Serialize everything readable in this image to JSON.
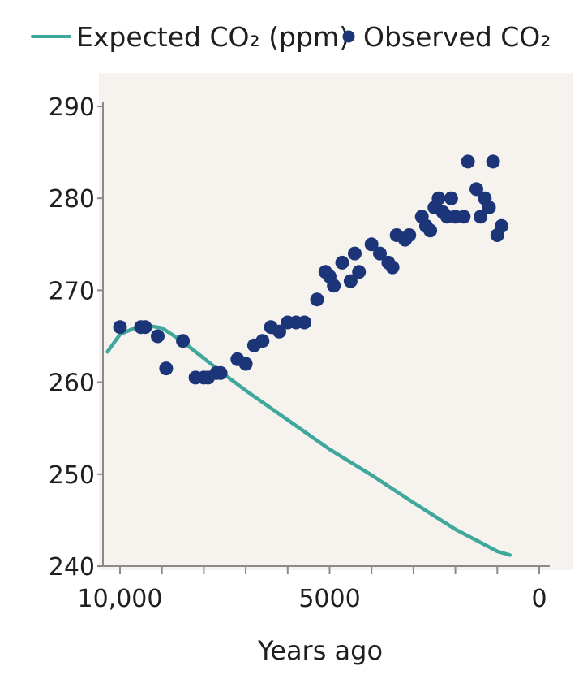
{
  "chart_data": {
    "type": "scatter",
    "title": "",
    "xlabel": "Years ago",
    "ylabel": "",
    "xlim": [
      10000,
      0
    ],
    "ylim": [
      240,
      290
    ],
    "x_reversed": true,
    "x_ticks": [
      10000,
      5000,
      0
    ],
    "x_tick_labels": [
      "10,000",
      "5000",
      "0"
    ],
    "x_minor_ticks": [
      9000,
      8000,
      7000,
      6000,
      4000,
      3000,
      2000,
      1000
    ],
    "y_ticks": [
      240,
      250,
      260,
      270,
      280,
      290
    ],
    "y_tick_labels": [
      "240",
      "250",
      "260",
      "270",
      "280",
      "290"
    ],
    "legend_position": "top",
    "series": [
      {
        "name": "Expected CO₂ (ppm)",
        "type": "line",
        "color": "#3fa79b",
        "x": [
          10300,
          10000,
          9700,
          9400,
          9000,
          8500,
          8000,
          7500,
          7000,
          6000,
          5000,
          4000,
          3000,
          2000,
          1500,
          1000,
          700
        ],
        "y": [
          263.3,
          265.2,
          265.8,
          266.2,
          265.9,
          264.4,
          262.6,
          260.8,
          259.1,
          255.9,
          252.7,
          249.9,
          246.9,
          244.0,
          242.8,
          241.6,
          241.2
        ]
      },
      {
        "name": "Observed CO₂",
        "type": "scatter",
        "color": "#1c3478",
        "x": [
          10000,
          9500,
          9400,
          9100,
          8900,
          8500,
          8200,
          8000,
          7900,
          7700,
          7600,
          7200,
          7000,
          6800,
          6600,
          6400,
          6200,
          6000,
          5800,
          5600,
          5300,
          5100,
          5000,
          4900,
          4700,
          4500,
          4400,
          4300,
          4000,
          3800,
          3600,
          3500,
          3400,
          3200,
          3100,
          2800,
          2700,
          2600,
          2500,
          2400,
          2300,
          2200,
          2100,
          2000,
          1800,
          1700,
          1500,
          1400,
          1300,
          1200,
          1100,
          1000,
          900
        ],
        "y": [
          266,
          266,
          266,
          265,
          261.5,
          264.5,
          260.5,
          260.5,
          260.5,
          261,
          261,
          262.5,
          262,
          264,
          264.5,
          266,
          265.5,
          266.5,
          266.5,
          266.5,
          269,
          272,
          271.5,
          270.5,
          273,
          271,
          274,
          272,
          275,
          274,
          273,
          272.5,
          276,
          275.5,
          276,
          278,
          277,
          276.5,
          279,
          280,
          278.5,
          278,
          280,
          278,
          278,
          284,
          281,
          278,
          280,
          279,
          284,
          276,
          277
        ]
      }
    ]
  }
}
